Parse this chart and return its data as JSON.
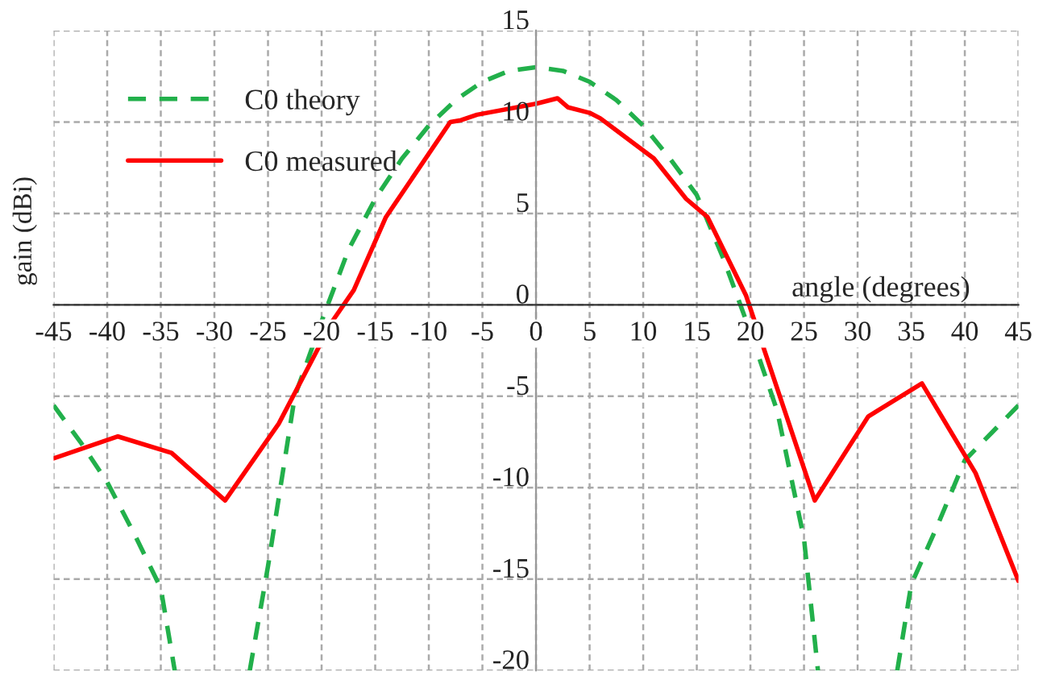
{
  "chart_data": {
    "type": "line",
    "xlabel": "angle (degrees)",
    "ylabel": "gain (dBi)",
    "xlim": [
      -45,
      45
    ],
    "ylim": [
      -20,
      15
    ],
    "xticks": [
      -45,
      -40,
      -35,
      -30,
      -25,
      -20,
      -15,
      -10,
      -5,
      0,
      5,
      10,
      15,
      20,
      25,
      30,
      35,
      40,
      45
    ],
    "yticks": [
      -20,
      -15,
      -10,
      -5,
      0,
      5,
      10,
      15
    ],
    "grid": true,
    "legend": "top left",
    "series": [
      {
        "name": "C0 theory",
        "color": "#22b04b",
        "line_style": "dashed",
        "x": [
          -45,
          -42.5,
          -40,
          -37.5,
          -35,
          -33.7,
          -30,
          -26.7,
          -25,
          -22.5,
          -20,
          -17.5,
          -15,
          -12.5,
          -10,
          -7.5,
          -5,
          -2.5,
          0,
          2.5,
          5,
          7.5,
          10,
          12.5,
          15,
          17.5,
          20,
          22.5,
          25,
          26.3,
          30,
          33.7,
          35,
          37.5,
          40,
          42.5,
          45
        ],
        "values": [
          -5.5,
          -7.5,
          -9.7,
          -12.5,
          -15.5,
          -20,
          null,
          -20,
          -14.3,
          -5,
          -0.9,
          3,
          5.8,
          8,
          9.8,
          11.2,
          12.2,
          12.8,
          13,
          12.8,
          12.2,
          11.2,
          9.8,
          8,
          6,
          2.5,
          -1.5,
          -5.8,
          -12.8,
          -20,
          null,
          -20,
          -15.3,
          -12,
          -8.5,
          -7,
          -5.5
        ]
      },
      {
        "name": "C0 measured",
        "color": "#ff0000",
        "line_style": "solid",
        "x": [
          -45,
          -39,
          -34,
          -29,
          -24,
          -19,
          -17,
          -14,
          -8,
          -7,
          -5.5,
          0,
          2,
          3,
          5,
          6,
          11,
          14,
          16,
          19.6,
          26,
          31,
          36,
          41,
          45
        ],
        "values": [
          -8.4,
          -7.2,
          -8.1,
          -10.7,
          -6.5,
          -0.9,
          0.8,
          4.8,
          10,
          10.1,
          10.4,
          11,
          11.3,
          10.8,
          10.5,
          10.2,
          8,
          5.8,
          4.8,
          0.5,
          -10.7,
          -6.1,
          -4.3,
          -9.2,
          -15.1
        ]
      }
    ]
  }
}
